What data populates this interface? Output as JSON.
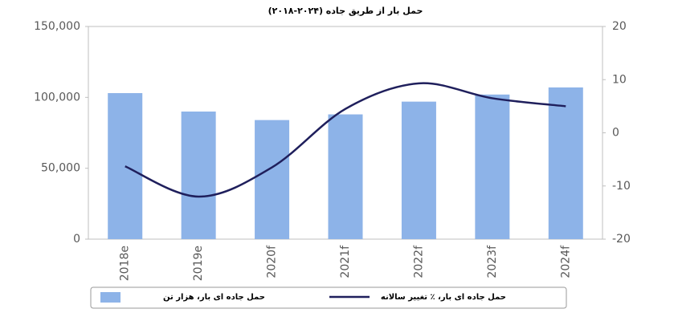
{
  "chart_data": {
    "type": "bar_line",
    "title": "حمل بار از طریق جاده (۲۰۲۴-۲۰۱۸)",
    "categories": [
      "2018e",
      "2019e",
      "2020f",
      "2021f",
      "2022f",
      "2023f",
      "2024f"
    ],
    "series": [
      {
        "name": "حمل جاده ای بار، هزار تن",
        "type": "bar",
        "color": "#8db3e8",
        "values": [
          103000,
          90000,
          84000,
          88000,
          97000,
          102000,
          107000
        ]
      },
      {
        "name": "حمل جاده ای بار، ٪ تغییر سالانه",
        "type": "line",
        "axis": "y2",
        "color": "#1f1f5c",
        "values": [
          -6.3,
          -12,
          -6.5,
          4.5,
          9.3,
          6.5,
          5
        ]
      }
    ],
    "ylim": [
      0,
      150000
    ],
    "yticks": [
      0,
      {
        "value": 50000,
        "label": "50,000"
      },
      {
        "value": 100000,
        "label": "100,000"
      },
      {
        "value": 150000,
        "label": "150,000"
      }
    ],
    "y2lim": [
      -20,
      20
    ],
    "y2ticks": [
      -20,
      -10,
      0,
      10,
      20
    ],
    "grid": false,
    "legend": "bottom"
  }
}
